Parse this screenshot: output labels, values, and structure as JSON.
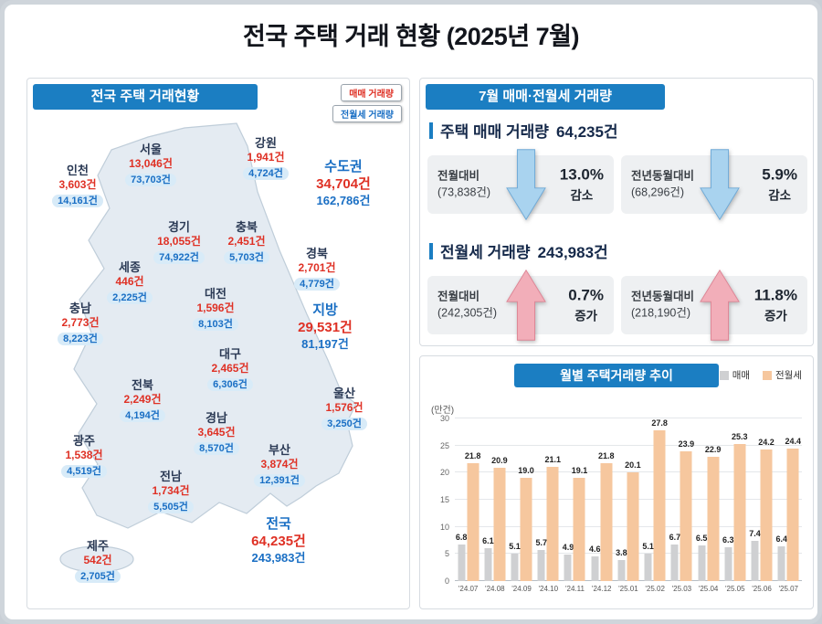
{
  "title": "전국 주택 거래 현황 (2025년 7월)",
  "map_panel": {
    "header": "전국 주택 거래현황",
    "legend": {
      "sale": "매매 거래량",
      "rent": "전월세 거래량"
    },
    "regions": [
      {
        "name": "서울",
        "sale": "13,046건",
        "rent": "73,703건"
      },
      {
        "name": "인천",
        "sale": "3,603건",
        "rent": "14,161건"
      },
      {
        "name": "강원",
        "sale": "1,941건",
        "rent": "4,724건"
      },
      {
        "name": "수도권",
        "sale": "34,704건",
        "rent": "162,786건"
      },
      {
        "name": "경기",
        "sale": "18,055건",
        "rent": "74,922건"
      },
      {
        "name": "충북",
        "sale": "2,451건",
        "rent": "5,703건"
      },
      {
        "name": "경북",
        "sale": "2,701건",
        "rent": "4,779건"
      },
      {
        "name": "세종",
        "sale": "446건",
        "rent": "2,225건"
      },
      {
        "name": "대전",
        "sale": "1,596건",
        "rent": "8,103건"
      },
      {
        "name": "지방",
        "sale": "29,531건",
        "rent": "81,197건"
      },
      {
        "name": "충남",
        "sale": "2,773건",
        "rent": "8,223건"
      },
      {
        "name": "대구",
        "sale": "2,465건",
        "rent": "6,306건"
      },
      {
        "name": "전북",
        "sale": "2,249건",
        "rent": "4,194건"
      },
      {
        "name": "울산",
        "sale": "1,576건",
        "rent": "3,250건"
      },
      {
        "name": "경남",
        "sale": "3,645건",
        "rent": "8,570건"
      },
      {
        "name": "광주",
        "sale": "1,538건",
        "rent": "4,519건"
      },
      {
        "name": "부산",
        "sale": "3,874건",
        "rent": "12,391건"
      },
      {
        "name": "전남",
        "sale": "1,734건",
        "rent": "5,505건"
      },
      {
        "name": "전국",
        "sale": "64,235건",
        "rent": "243,983건"
      },
      {
        "name": "제주",
        "sale": "542건",
        "rent": "2,705건"
      }
    ]
  },
  "summary_panel": {
    "header": "7월 매매·전월세 거래량",
    "sale_total_label": "주택 매매 거래량",
    "sale_total_value": "64,235건",
    "sale_rows": [
      {
        "label": "전월대비",
        "base": "(73,838건)",
        "pct": "13.0%",
        "dir": "감소"
      },
      {
        "label": "전년동월대비",
        "base": "(68,296건)",
        "pct": "5.9%",
        "dir": "감소"
      }
    ],
    "rent_total_label": "전월세 거래량",
    "rent_total_value": "243,983건",
    "rent_rows": [
      {
        "label": "전월대비",
        "base": "(242,305건)",
        "pct": "0.7%",
        "dir": "증가"
      },
      {
        "label": "전년동월대비",
        "base": "(218,190건)",
        "pct": "11.8%",
        "dir": "증가"
      }
    ]
  },
  "chart_panel": {
    "header": "월별 주택거래량 추이",
    "unit": "(만건)",
    "legend": {
      "sale": "매매",
      "rent": "전월세"
    }
  },
  "chart_data": {
    "type": "bar",
    "title": "월별 주택거래량 추이",
    "ylabel": "(만건)",
    "categories": [
      "'24.07",
      "'24.08",
      "'24.09",
      "'24.10",
      "'24.11",
      "'24.12",
      "'25.01",
      "'25.02",
      "'25.03",
      "'25.04",
      "'25.05",
      "'25.06",
      "'25.07"
    ],
    "series": [
      {
        "name": "매매",
        "values": [
          6.8,
          6.1,
          5.1,
          5.7,
          4.9,
          4.6,
          3.8,
          5.1,
          6.7,
          6.5,
          6.3,
          7.4,
          6.4
        ]
      },
      {
        "name": "전월세",
        "values": [
          21.8,
          20.9,
          19.0,
          21.1,
          19.1,
          21.8,
          20.1,
          27.8,
          23.9,
          22.9,
          25.3,
          24.2,
          24.4
        ]
      }
    ],
    "ylim": [
      0,
      30
    ],
    "yticks": [
      0,
      5,
      10,
      15,
      20,
      25,
      30
    ],
    "legend_position": "top-right",
    "grid": true
  },
  "colors": {
    "band_blue": "#1b7ec2",
    "sale_red": "#df3125",
    "rent_blue": "#1a6fc4",
    "bar_sale": "#cfd0d2",
    "bar_rent": "#f6c79e",
    "arrow_down": "#a9d3ef",
    "arrow_up": "#f2aeb9"
  }
}
